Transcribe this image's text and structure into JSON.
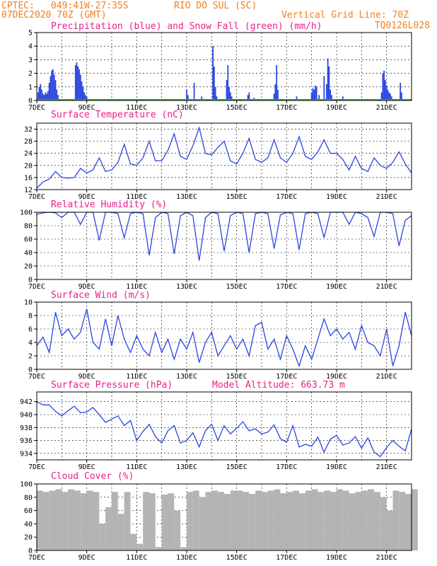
{
  "header": {
    "source": "CPTEC:",
    "coords": "049:41W-27:35S",
    "station": "RIO DO SUL (SC)",
    "run": "07DEC2020 70Z (GMT)",
    "grid_note": "Vertical Grid Line: 70Z",
    "code": "TQ0126L028"
  },
  "x_axis": {
    "labels": [
      "7DEC",
      "9DEC",
      "11DEC",
      "13DEC",
      "15DEC",
      "17DEC",
      "19DEC",
      "21DEC"
    ],
    "label_days": [
      0,
      2,
      4,
      6,
      8,
      10,
      12,
      14
    ],
    "range_days": [
      0,
      15
    ]
  },
  "colors": {
    "line": "#2a46e0",
    "snow": "#2db52d",
    "cloud": "#b4b4b4",
    "title": "#e8208a",
    "header": "#f08020"
  },
  "chart_data": [
    {
      "type": "bar",
      "title": "Precipitation (blue) and Snow Fall (green) (mm/h)",
      "ylim": [
        0,
        5
      ],
      "yticks": [
        0,
        1,
        2,
        3,
        4,
        5
      ],
      "series": [
        {
          "name": "Precipitation (blue)",
          "x": [
            0.05,
            0.1,
            0.15,
            0.2,
            0.25,
            0.3,
            0.35,
            0.4,
            0.45,
            0.5,
            0.55,
            0.6,
            0.65,
            0.7,
            0.75,
            0.8,
            0.85,
            1.55,
            1.6,
            1.65,
            1.7,
            1.75,
            1.8,
            1.85,
            1.9,
            1.95,
            2.0,
            4.05,
            6.0,
            6.05,
            6.3,
            6.6,
            7.05,
            7.1,
            7.15,
            7.2,
            7.6,
            7.65,
            7.7,
            7.75,
            7.8,
            8.45,
            8.5,
            8.7,
            9.5,
            9.55,
            9.6,
            9.65,
            10.4,
            11.0,
            11.05,
            11.1,
            11.15,
            11.2,
            11.3,
            11.5,
            11.6,
            11.65,
            11.7,
            11.75,
            11.8,
            12.25,
            13.8,
            13.85,
            13.9,
            13.95,
            14.0,
            14.05,
            14.1,
            14.15,
            14.2,
            14.55,
            14.6
          ],
          "values": [
            0.6,
            1.0,
            1.2,
            0.8,
            0.5,
            0.4,
            0.6,
            0.5,
            0.7,
            1.3,
            1.8,
            2.2,
            2.3,
            1.9,
            1.5,
            0.8,
            0.4,
            2.6,
            2.8,
            2.5,
            2.3,
            1.9,
            1.4,
            1.0,
            0.6,
            0.4,
            0.3,
            0.1,
            0.8,
            0.4,
            1.3,
            0.3,
            4.0,
            2.5,
            1.0,
            0.3,
            1.5,
            2.6,
            1.0,
            0.6,
            0.3,
            0.4,
            0.6,
            0.2,
            0.5,
            1.2,
            2.6,
            0.8,
            0.3,
            0.6,
            0.9,
            0.8,
            1.1,
            1.0,
            0.4,
            1.8,
            1.2,
            3.1,
            2.5,
            0.8,
            0.4,
            0.3,
            0.6,
            2.0,
            2.2,
            1.5,
            1.1,
            0.8,
            0.6,
            0.5,
            0.3,
            1.3,
            0.6
          ]
        },
        {
          "name": "Snow Fall (green)",
          "x": [],
          "values": []
        }
      ]
    },
    {
      "type": "line",
      "title": "Surface Temperature (nC)",
      "ylim": [
        12,
        34
      ],
      "yticks": [
        12,
        16,
        20,
        24,
        28,
        32
      ],
      "x": [
        0,
        0.25,
        0.5,
        0.75,
        1,
        1.25,
        1.5,
        1.75,
        2,
        2.25,
        2.5,
        2.75,
        3,
        3.25,
        3.5,
        3.75,
        4,
        4.25,
        4.5,
        4.75,
        5,
        5.25,
        5.5,
        5.75,
        6,
        6.25,
        6.5,
        6.75,
        7,
        7.25,
        7.5,
        7.75,
        8,
        8.25,
        8.5,
        8.75,
        9,
        9.25,
        9.5,
        9.75,
        10,
        10.25,
        10.5,
        10.75,
        11,
        11.25,
        11.5,
        11.75,
        12,
        12.25,
        12.5,
        12.75,
        13,
        13.25,
        13.5,
        13.75,
        14,
        14.25,
        14.5,
        14.75,
        15
      ],
      "values": [
        12.5,
        14.5,
        15.5,
        18.0,
        16.0,
        15.8,
        16.0,
        19.0,
        17.5,
        18.5,
        22.5,
        18.0,
        18.5,
        21.0,
        27.0,
        20.5,
        20.0,
        22.5,
        28.0,
        21.5,
        21.5,
        25.0,
        30.5,
        23.0,
        22.0,
        26.5,
        32.5,
        24.0,
        23.5,
        26.0,
        28.0,
        21.5,
        20.5,
        24.0,
        29.0,
        22.0,
        21.0,
        22.5,
        28.5,
        22.5,
        21.0,
        24.0,
        29.5,
        23.0,
        22.0,
        24.5,
        28.5,
        24.0,
        24.0,
        22.0,
        18.5,
        23.0,
        19.0,
        18.0,
        22.5,
        20.0,
        19.0,
        21.0,
        24.5,
        20.5,
        17.5
      ]
    },
    {
      "type": "line",
      "title": "Relative Humidity (%)",
      "ylim": [
        0,
        100
      ],
      "yticks": [
        0,
        20,
        40,
        60,
        80,
        100
      ],
      "x": [
        0,
        0.25,
        0.5,
        0.75,
        1,
        1.25,
        1.5,
        1.75,
        2,
        2.25,
        2.5,
        2.75,
        3,
        3.25,
        3.5,
        3.75,
        4,
        4.25,
        4.5,
        4.75,
        5,
        5.25,
        5.5,
        5.75,
        6,
        6.25,
        6.5,
        6.75,
        7,
        7.25,
        7.5,
        7.75,
        8,
        8.25,
        8.5,
        8.75,
        9,
        9.25,
        9.5,
        9.75,
        10,
        10.25,
        10.5,
        10.75,
        11,
        11.25,
        11.5,
        11.75,
        12,
        12.25,
        12.5,
        12.75,
        13,
        13.25,
        13.5,
        13.75,
        14,
        14.25,
        14.5,
        14.75,
        15
      ],
      "values": [
        97,
        99,
        100,
        99,
        92,
        100,
        100,
        82,
        100,
        100,
        58,
        100,
        100,
        98,
        62,
        98,
        100,
        98,
        36,
        92,
        100,
        98,
        38,
        95,
        100,
        95,
        28,
        92,
        100,
        98,
        42,
        95,
        100,
        98,
        40,
        98,
        100,
        98,
        46,
        96,
        100,
        98,
        44,
        98,
        100,
        98,
        62,
        100,
        100,
        100,
        82,
        100,
        98,
        92,
        64,
        100,
        100,
        98,
        50,
        88,
        95
      ]
    },
    {
      "type": "line",
      "title": "Surface Wind (m/s)",
      "ylim": [
        0,
        10
      ],
      "yticks": [
        0,
        2,
        4,
        6,
        8,
        10
      ],
      "x": [
        0,
        0.25,
        0.5,
        0.75,
        1,
        1.25,
        1.5,
        1.75,
        2,
        2.25,
        2.5,
        2.75,
        3,
        3.25,
        3.5,
        3.75,
        4,
        4.25,
        4.5,
        4.75,
        5,
        5.25,
        5.5,
        5.75,
        6,
        6.25,
        6.5,
        6.75,
        7,
        7.25,
        7.5,
        7.75,
        8,
        8.25,
        8.5,
        8.75,
        9,
        9.25,
        9.5,
        9.75,
        10,
        10.25,
        10.5,
        10.75,
        11,
        11.25,
        11.5,
        11.75,
        12,
        12.25,
        12.5,
        12.75,
        13,
        13.25,
        13.5,
        13.75,
        14,
        14.25,
        14.5,
        14.75,
        15
      ],
      "values": [
        3.5,
        4.8,
        2.5,
        8.5,
        5.0,
        6.0,
        4.5,
        5.5,
        9.0,
        4.0,
        3.0,
        7.5,
        3.5,
        8.0,
        4.5,
        2.5,
        5.0,
        3.0,
        2.0,
        5.5,
        2.5,
        4.5,
        1.5,
        4.5,
        3.0,
        5.5,
        1.0,
        4.0,
        5.5,
        2.0,
        3.5,
        5.0,
        3.0,
        4.5,
        2.0,
        6.5,
        7.0,
        3.0,
        4.5,
        1.5,
        5.0,
        3.0,
        0.5,
        3.5,
        1.5,
        4.5,
        7.5,
        5.0,
        6.0,
        4.5,
        5.5,
        3.0,
        6.5,
        4.0,
        3.5,
        2.0,
        6.0,
        0.5,
        3.5,
        8.5,
        5.0
      ]
    },
    {
      "type": "line",
      "title": "Surface Pressure (hPa)",
      "subtitle": "Model Altitude: 663.73 m",
      "ylim": [
        933,
        943.5
      ],
      "yticks": [
        934,
        936,
        938,
        940,
        942
      ],
      "x": [
        0,
        0.25,
        0.5,
        0.75,
        1,
        1.25,
        1.5,
        1.75,
        2,
        2.25,
        2.5,
        2.75,
        3,
        3.25,
        3.5,
        3.75,
        4,
        4.25,
        4.5,
        4.75,
        5,
        5.25,
        5.5,
        5.75,
        6,
        6.25,
        6.5,
        6.75,
        7,
        7.25,
        7.5,
        7.75,
        8,
        8.25,
        8.5,
        8.75,
        9,
        9.25,
        9.5,
        9.75,
        10,
        10.25,
        10.5,
        10.75,
        11,
        11.25,
        11.5,
        11.75,
        12,
        12.25,
        12.5,
        12.75,
        13,
        13.25,
        13.5,
        13.75,
        14,
        14.25,
        14.5,
        14.75,
        15
      ],
      "values": [
        942.0,
        941.5,
        941.5,
        940.5,
        939.8,
        940.6,
        941.3,
        940.3,
        940.4,
        941.1,
        940.0,
        938.8,
        939.3,
        939.8,
        938.3,
        939.1,
        936.0,
        937.4,
        938.5,
        936.6,
        935.6,
        937.5,
        938.3,
        935.6,
        936.0,
        937.2,
        935.0,
        937.5,
        938.5,
        936.0,
        938.3,
        937.0,
        937.9,
        938.9,
        937.5,
        937.8,
        937.0,
        937.3,
        938.4,
        936.3,
        935.7,
        938.3,
        935.0,
        935.4,
        935.1,
        936.5,
        934.2,
        936.2,
        936.8,
        935.3,
        935.6,
        936.6,
        934.8,
        936.4,
        934.2,
        933.5,
        934.9,
        936.0,
        935.1,
        934.4,
        937.8
      ]
    },
    {
      "type": "area",
      "title": "Cloud Cover (%)",
      "ylim": [
        0,
        100
      ],
      "yticks": [
        0,
        20,
        40,
        60,
        80,
        100
      ],
      "x": [
        0,
        0.25,
        0.5,
        0.75,
        1,
        1.25,
        1.5,
        1.75,
        2,
        2.25,
        2.5,
        2.75,
        3,
        3.25,
        3.5,
        3.75,
        4,
        4.25,
        4.5,
        4.75,
        5,
        5.25,
        5.5,
        5.75,
        6,
        6.25,
        6.5,
        6.75,
        7,
        7.25,
        7.5,
        7.75,
        8,
        8.25,
        8.5,
        8.75,
        9,
        9.25,
        9.5,
        9.75,
        10,
        10.25,
        10.5,
        10.75,
        11,
        11.25,
        11.5,
        11.75,
        12,
        12.25,
        12.5,
        12.75,
        13,
        13.25,
        13.5,
        13.75,
        14,
        14.25,
        14.5,
        14.75,
        15
      ],
      "values": [
        90,
        88,
        90,
        92,
        88,
        92,
        90,
        86,
        90,
        88,
        40,
        65,
        88,
        55,
        88,
        25,
        10,
        88,
        86,
        5,
        84,
        86,
        60,
        5,
        88,
        90,
        80,
        88,
        90,
        88,
        85,
        90,
        90,
        88,
        85,
        90,
        88,
        90,
        92,
        86,
        88,
        90,
        86,
        90,
        92,
        88,
        90,
        88,
        92,
        90,
        86,
        88,
        90,
        92,
        88,
        80,
        60,
        90,
        88,
        85,
        92
      ]
    }
  ]
}
